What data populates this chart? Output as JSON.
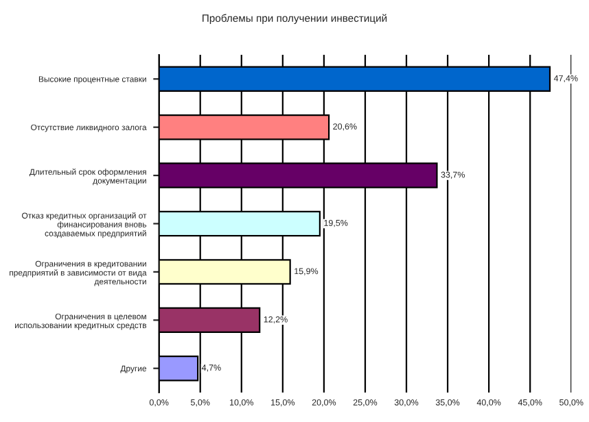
{
  "chart_data": {
    "type": "bar",
    "orientation": "horizontal",
    "title": "Проблемы при получении инвестиций",
    "categories": [
      "Высокие процентные ставки",
      "Отсутствие ликвидного залога",
      "Длительный срок оформления\nдокументации",
      "Отказ кредитных организаций от\nфинансирования вновь\nсоздаваемых предприятий",
      "Ограничения в кредитовании\nпредприятий в зависимости от вида\nдеятельности",
      "Ограничения в целевом\nиспользовании кредитных средств",
      "Другие"
    ],
    "values": [
      47.4,
      20.6,
      33.7,
      19.5,
      15.9,
      12.2,
      4.7
    ],
    "colors": [
      "#0066cc",
      "#ff8080",
      "#660066",
      "#ccffff",
      "#ffffcc",
      "#993366",
      "#9999ff"
    ],
    "value_labels": [
      "47,4%",
      "20,6%",
      "33,7%",
      "19,5%",
      "15,9%",
      "12,2%",
      "4,7%"
    ],
    "xlim": [
      0,
      50
    ],
    "xticks": [
      {
        "value": 0,
        "label": "0,0%"
      },
      {
        "value": 5,
        "label": "5,0%"
      },
      {
        "value": 10,
        "label": "10,0%"
      },
      {
        "value": 15,
        "label": "15,0%"
      },
      {
        "value": 20,
        "label": "20,0%"
      },
      {
        "value": 25,
        "label": "25,0%"
      },
      {
        "value": 30,
        "label": "30,0%"
      },
      {
        "value": 35,
        "label": "35,0%"
      },
      {
        "value": 40,
        "label": "40,0%"
      },
      {
        "value": 45,
        "label": "45,0%"
      },
      {
        "value": 50,
        "label": "50,0%"
      }
    ],
    "grid": "x"
  }
}
